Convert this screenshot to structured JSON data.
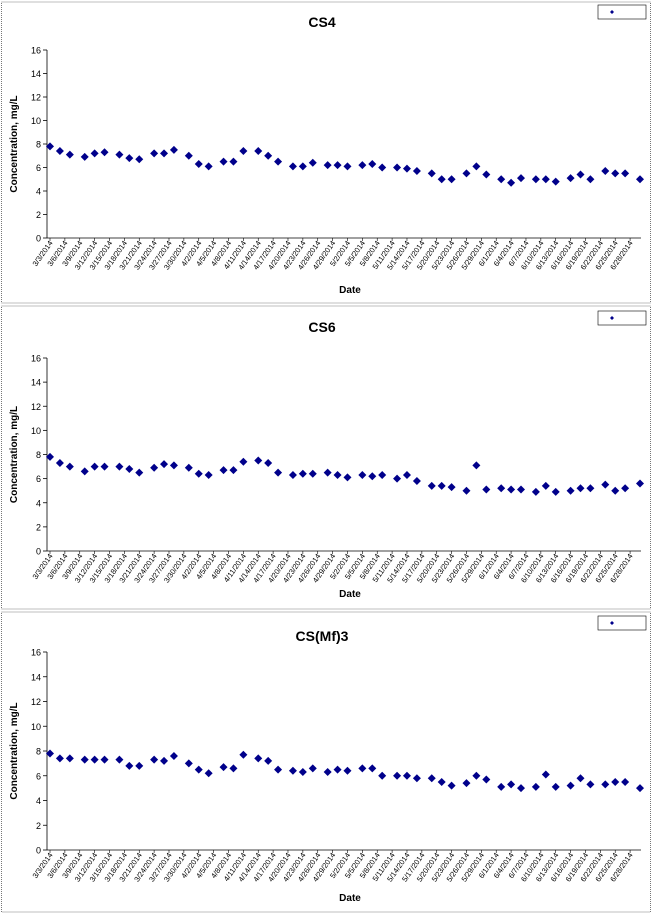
{
  "chart_data": [
    {
      "type": "scatter",
      "title": "CS4",
      "xlabel": "Date",
      "ylabel": "Concentration, mg/L",
      "ylim": [
        0,
        16
      ],
      "yticks": [
        "0",
        "2",
        "4",
        "6",
        "8",
        "10",
        "12",
        "14",
        "16"
      ],
      "xticks": [
        "3/3/2014",
        "3/6/2014",
        "3/9/2014",
        "3/12/2014",
        "3/15/2014",
        "3/18/2014",
        "3/21/2014",
        "3/24/2014",
        "3/27/2014",
        "3/30/2014",
        "4/2/2014",
        "4/5/2014",
        "4/8/2014",
        "4/11/2014",
        "4/14/2014",
        "4/17/2014",
        "4/20/2014",
        "4/23/2014",
        "4/26/2014",
        "4/29/2014",
        "5/2/2014",
        "5/5/2014",
        "5/8/2014",
        "5/11/2014",
        "5/14/2014",
        "5/17/2014",
        "5/20/2014",
        "5/23/2014",
        "5/26/2014",
        "5/29/2014",
        "6/1/2014",
        "6/4/2014",
        "6/7/2014",
        "6/10/2014",
        "6/13/2014",
        "6/16/2014",
        "6/19/2014",
        "6/22/2014",
        "6/25/2014",
        "6/28/2014"
      ],
      "legend_position": "top-right",
      "marker_color": "#00008b",
      "series": [
        {
          "x": [
            "3/3/2014",
            "3/5/2014",
            "3/7/2014",
            "3/10/2014",
            "3/12/2014",
            "3/14/2014",
            "3/17/2014",
            "3/19/2014",
            "3/21/2014",
            "3/24/2014",
            "3/26/2014",
            "3/28/2014",
            "3/31/2014",
            "4/2/2014",
            "4/4/2014",
            "4/7/2014",
            "4/9/2014",
            "4/11/2014",
            "4/14/2014",
            "4/16/2014",
            "4/18/2014",
            "4/21/2014",
            "4/23/2014",
            "4/25/2014",
            "4/28/2014",
            "4/30/2014",
            "5/2/2014",
            "5/5/2014",
            "5/7/2014",
            "5/9/2014",
            "5/12/2014",
            "5/14/2014",
            "5/16/2014",
            "5/19/2014",
            "5/21/2014",
            "5/23/2014",
            "5/26/2014",
            "5/28/2014",
            "5/30/2014",
            "6/2/2014",
            "6/4/2014",
            "6/6/2014",
            "6/9/2014",
            "6/11/2014",
            "6/13/2014",
            "6/16/2014",
            "6/18/2014",
            "6/20/2014",
            "6/23/2014",
            "6/25/2014",
            "6/27/2014",
            "6/30/2014"
          ],
          "y": [
            7.8,
            7.4,
            7.1,
            6.9,
            7.2,
            7.3,
            7.1,
            6.8,
            6.7,
            7.2,
            7.2,
            7.5,
            7.0,
            6.3,
            6.1,
            6.5,
            6.5,
            7.4,
            7.4,
            7.0,
            6.5,
            6.1,
            6.1,
            6.4,
            6.2,
            6.2,
            6.1,
            6.2,
            6.3,
            6.0,
            6.0,
            5.9,
            5.7,
            5.5,
            5.0,
            5.0,
            5.5,
            6.1,
            5.4,
            5.0,
            4.7,
            5.1,
            5.0,
            5.0,
            4.8,
            5.1,
            5.4,
            5.0,
            5.7,
            5.5,
            5.5,
            5.0
          ]
        }
      ]
    },
    {
      "type": "scatter",
      "title": "CS6",
      "xlabel": "Date",
      "ylabel": "Concentration, mg/L",
      "ylim": [
        0,
        16
      ],
      "yticks": [
        "0",
        "2",
        "4",
        "6",
        "8",
        "10",
        "12",
        "14",
        "16"
      ],
      "xticks": [
        "3/3/2014",
        "3/6/2014",
        "3/9/2014",
        "3/12/2014",
        "3/15/2014",
        "3/18/2014",
        "3/21/2014",
        "3/24/2014",
        "3/27/2014",
        "3/30/2014",
        "4/2/2014",
        "4/5/2014",
        "4/8/2014",
        "4/11/2014",
        "4/14/2014",
        "4/17/2014",
        "4/20/2014",
        "4/23/2014",
        "4/26/2014",
        "4/29/2014",
        "5/2/2014",
        "5/5/2014",
        "5/8/2014",
        "5/11/2014",
        "5/14/2014",
        "5/17/2014",
        "5/20/2014",
        "5/23/2014",
        "5/26/2014",
        "5/29/2014",
        "6/1/2014",
        "6/4/2014",
        "6/7/2014",
        "6/10/2014",
        "6/13/2014",
        "6/16/2014",
        "6/19/2014",
        "6/22/2014",
        "6/25/2014",
        "6/28/2014"
      ],
      "legend_position": "top-right",
      "marker_color": "#00008b",
      "series": [
        {
          "x": [
            "3/3/2014",
            "3/5/2014",
            "3/7/2014",
            "3/10/2014",
            "3/12/2014",
            "3/14/2014",
            "3/17/2014",
            "3/19/2014",
            "3/21/2014",
            "3/24/2014",
            "3/26/2014",
            "3/28/2014",
            "3/31/2014",
            "4/2/2014",
            "4/4/2014",
            "4/7/2014",
            "4/9/2014",
            "4/11/2014",
            "4/14/2014",
            "4/16/2014",
            "4/18/2014",
            "4/21/2014",
            "4/23/2014",
            "4/25/2014",
            "4/28/2014",
            "4/30/2014",
            "5/2/2014",
            "5/5/2014",
            "5/7/2014",
            "5/9/2014",
            "5/12/2014",
            "5/14/2014",
            "5/16/2014",
            "5/19/2014",
            "5/21/2014",
            "5/23/2014",
            "5/26/2014",
            "5/28/2014",
            "5/30/2014",
            "6/2/2014",
            "6/4/2014",
            "6/6/2014",
            "6/9/2014",
            "6/11/2014",
            "6/13/2014",
            "6/16/2014",
            "6/18/2014",
            "6/20/2014",
            "6/23/2014",
            "6/25/2014",
            "6/27/2014",
            "6/30/2014"
          ],
          "y": [
            7.8,
            7.3,
            7.0,
            6.6,
            7.0,
            7.0,
            7.0,
            6.8,
            6.5,
            6.9,
            7.2,
            7.1,
            6.9,
            6.4,
            6.3,
            6.7,
            6.7,
            7.4,
            7.5,
            7.3,
            6.5,
            6.3,
            6.4,
            6.4,
            6.5,
            6.3,
            6.1,
            6.3,
            6.2,
            6.3,
            6.0,
            6.3,
            5.8,
            5.4,
            5.4,
            5.3,
            5.0,
            7.1,
            5.1,
            5.2,
            5.1,
            5.1,
            4.9,
            5.4,
            4.9,
            5.0,
            5.2,
            5.2,
            5.5,
            5.0,
            5.2,
            5.6
          ]
        }
      ]
    },
    {
      "type": "scatter",
      "title": "CS(Mf)3",
      "xlabel": "Date",
      "ylabel": "Concentration, mg/L",
      "ylim": [
        0,
        16
      ],
      "yticks": [
        "0",
        "2",
        "4",
        "6",
        "8",
        "10",
        "12",
        "14",
        "16"
      ],
      "xticks": [
        "3/3/2014",
        "3/6/2014",
        "3/9/2014",
        "3/12/2014",
        "3/15/2014",
        "3/18/2014",
        "3/21/2014",
        "3/24/2014",
        "3/27/2014",
        "3/30/2014",
        "4/2/2014",
        "4/5/2014",
        "4/8/2014",
        "4/11/2014",
        "4/14/2014",
        "4/17/2014",
        "4/20/2014",
        "4/23/2014",
        "4/26/2014",
        "4/29/2014",
        "5/2/2014",
        "5/5/2014",
        "5/8/2014",
        "5/11/2014",
        "5/14/2014",
        "5/17/2014",
        "5/20/2014",
        "5/23/2014",
        "5/26/2014",
        "5/29/2014",
        "6/1/2014",
        "6/4/2014",
        "6/7/2014",
        "6/10/2014",
        "6/13/2014",
        "6/16/2014",
        "6/19/2014",
        "6/22/2014",
        "6/25/2014",
        "6/28/2014"
      ],
      "legend_position": "top-right",
      "marker_color": "#00008b",
      "series": [
        {
          "x": [
            "3/3/2014",
            "3/5/2014",
            "3/7/2014",
            "3/10/2014",
            "3/12/2014",
            "3/14/2014",
            "3/17/2014",
            "3/19/2014",
            "3/21/2014",
            "3/24/2014",
            "3/26/2014",
            "3/28/2014",
            "3/31/2014",
            "4/2/2014",
            "4/4/2014",
            "4/7/2014",
            "4/9/2014",
            "4/11/2014",
            "4/14/2014",
            "4/16/2014",
            "4/18/2014",
            "4/21/2014",
            "4/23/2014",
            "4/25/2014",
            "4/28/2014",
            "4/30/2014",
            "5/2/2014",
            "5/5/2014",
            "5/7/2014",
            "5/9/2014",
            "5/12/2014",
            "5/14/2014",
            "5/16/2014",
            "5/19/2014",
            "5/21/2014",
            "5/23/2014",
            "5/26/2014",
            "5/28/2014",
            "5/30/2014",
            "6/2/2014",
            "6/4/2014",
            "6/6/2014",
            "6/9/2014",
            "6/11/2014",
            "6/13/2014",
            "6/16/2014",
            "6/18/2014",
            "6/20/2014",
            "6/23/2014",
            "6/25/2014",
            "6/27/2014",
            "6/30/2014"
          ],
          "y": [
            7.8,
            7.4,
            7.4,
            7.3,
            7.3,
            7.3,
            7.3,
            6.8,
            6.8,
            7.3,
            7.2,
            7.6,
            7.0,
            6.5,
            6.2,
            6.7,
            6.6,
            7.7,
            7.4,
            7.2,
            6.5,
            6.4,
            6.3,
            6.6,
            6.3,
            6.5,
            6.4,
            6.6,
            6.6,
            6.0,
            6.0,
            6.0,
            5.8,
            5.8,
            5.5,
            5.2,
            5.4,
            6.0,
            5.7,
            5.1,
            5.3,
            5.0,
            5.1,
            6.1,
            5.1,
            5.2,
            5.8,
            5.3,
            5.3,
            5.5,
            5.5,
            5.0
          ]
        }
      ]
    }
  ]
}
